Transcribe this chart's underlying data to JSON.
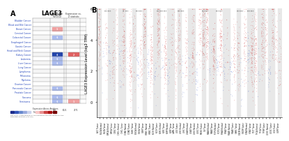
{
  "title": "LAGE3",
  "panel_a_label": "A",
  "panel_b_label": "B",
  "cancer_types": [
    "Bladder Cancer",
    "Blood and Bile Cancer",
    "Breast Cancer",
    "Cervical Cancer",
    "Colorectal Cancer",
    "Esophageal Cancer",
    "Gastric Cancer",
    "Head and Neck Cancer",
    "Kidney Cancer",
    "Leukemia",
    "Liver Cancer",
    "Lung Cancer",
    "Lymphoma",
    "Melanoma",
    "Myeloma",
    "Ovarian Cancer",
    "Pancreatic Cancer",
    "Prostate Cancer",
    "Sarcoma",
    "Seminoma"
  ],
  "cell_data": {
    "Bladder Cancer": {
      "col1": null,
      "col2": null
    },
    "Blood and Bile Cancer": {
      "col1": null,
      "col2": null
    },
    "Breast Cancer": {
      "col1": 1,
      "col2": null
    },
    "Cervical Cancer": {
      "col1": null,
      "col2": null
    },
    "Colorectal Cancer": {
      "col1": -1,
      "col2": null
    },
    "Esophageal Cancer": {
      "col1": null,
      "col2": null
    },
    "Gastric Cancer": {
      "col1": null,
      "col2": null
    },
    "Head and Neck Cancer": {
      "col1": null,
      "col2": null
    },
    "Kidney Cancer": {
      "col1": -3,
      "col2": 2
    },
    "Leukemia": {
      "col1": -1,
      "col2": null
    },
    "Liver Cancer": {
      "col1": -1,
      "col2": null
    },
    "Lung Cancer": {
      "col1": null,
      "col2": null
    },
    "Lymphoma": {
      "col1": null,
      "col2": null
    },
    "Melanoma": {
      "col1": null,
      "col2": null
    },
    "Myeloma": {
      "col1": null,
      "col2": null
    },
    "Ovarian Cancer": {
      "col1": null,
      "col2": null
    },
    "Pancreatic Cancer": {
      "col1": -1,
      "col2": null
    },
    "Prostate Cancer": {
      "col1": null,
      "col2": null
    },
    "Sarcoma": {
      "col1": -1,
      "col2": null
    },
    "Seminoma": {
      "col1": -1,
      "col2": 1
    }
  },
  "background_color": "#ffffff",
  "cell_colors": {
    "strong_red": "#cc2222",
    "medium_red": "#e06060",
    "light_red": "#f0a0a0",
    "strong_blue": "#2244aa",
    "medium_blue": "#5577cc",
    "light_blue": "#aabbee",
    "neutral": "#f0f0f0"
  },
  "scatter_cancer_labels": [
    "ACC Tumor",
    "BLCA Normal",
    "BLCA Tumor",
    "BRCA Normal",
    "BRCA Tumor",
    "CESC Tumor",
    "CHOL Normal",
    "CHOL Tumor",
    "COAD Normal",
    "COAD Tumor",
    "DLBC Tumor",
    "ESCA Normal",
    "ESCA Tumor",
    "GBM Tumor",
    "HNSC Normal",
    "HNSC Tumor",
    "KICH Normal",
    "KICH Tumor",
    "KIRC Normal",
    "KIRC Tumor",
    "KIRP Normal",
    "KIRP Tumor",
    "LAML Tumor",
    "LGG Tumor",
    "LIHC Normal",
    "LIHC Tumor",
    "LUAD Normal",
    "LUAD Tumor",
    "LUSC Normal",
    "LUSC Tumor",
    "MESO Tumor",
    "OV Tumor",
    "PAAD Normal",
    "PAAD Tumor",
    "PCPG Normal",
    "PCPG Tumor",
    "PRAD Normal",
    "PRAD Tumor",
    "READ Normal",
    "READ Tumor",
    "SARC Tumor",
    "SKCM Normal",
    "SKCM Tumor",
    "STAD Normal",
    "STAD Tumor",
    "TGCT Tumor",
    "THCA Normal",
    "THCA Tumor",
    "THYM Tumor",
    "UCEC Normal",
    "UCEC Tumor",
    "UCS Tumor",
    "UVM Tumor"
  ],
  "scatter_ylabel": "LAGE3 Expression Level (log2 TPM)",
  "scatter_ylim": [
    -1,
    6
  ],
  "scatter_yticks": [
    0,
    2,
    4,
    6
  ],
  "significance_stars": {
    "2": "***",
    "3": "***",
    "7": "**",
    "8": "***",
    "11": "***",
    "12": "***",
    "17": "***",
    "18": "***",
    "19": "***",
    "23": "***",
    "24": "***",
    "30": "***",
    "31": "***",
    "34": "***",
    "35": "***",
    "40": "***",
    "41": "***",
    "43": "***",
    "44": "***"
  },
  "tumor_color": "#cc3333",
  "normal_color": "#3355cc",
  "legend_colors": {
    "blue_shades": [
      "#1a2a8a",
      "#3355bb",
      "#6688cc",
      "#99aadd",
      "#ccd4ee"
    ],
    "red_shades": [
      "#f8c8c8",
      "#e89090",
      "#cc4444",
      "#aa1111",
      "#770000"
    ]
  }
}
